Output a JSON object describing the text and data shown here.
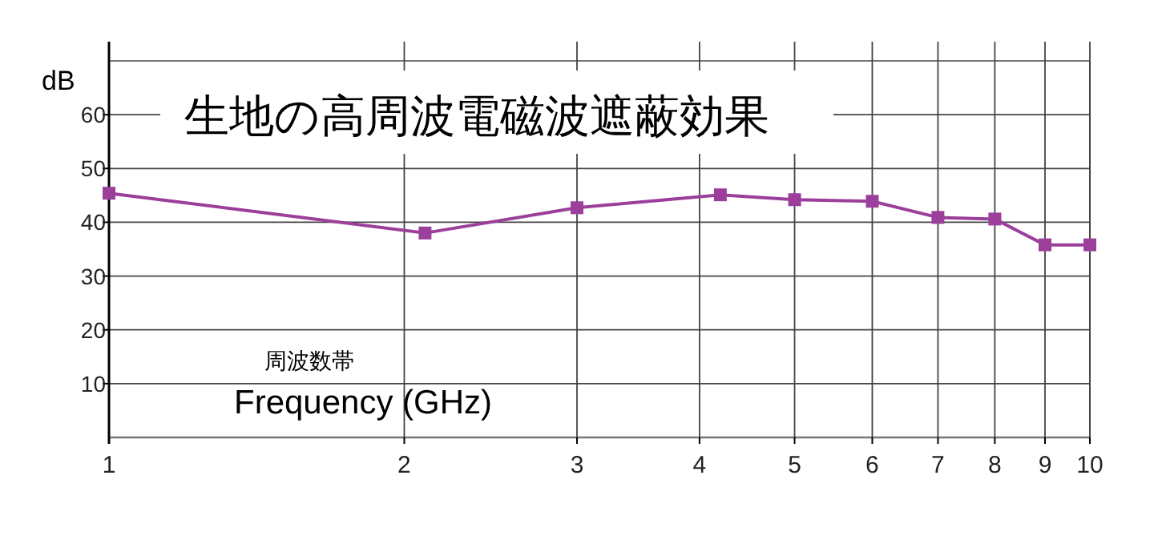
{
  "chart_data": {
    "type": "line",
    "title": "生地の高周波電磁波遮蔽効果",
    "ylabel": "dB",
    "xlabel": "Frequency (GHz)",
    "annotations": [
      "周波数帯"
    ],
    "x": [
      1,
      2.1,
      3,
      4.2,
      5,
      6,
      7,
      8,
      9,
      10
    ],
    "series": [
      {
        "color": "#9b3f9b",
        "values": [
          45.4,
          38,
          42.7,
          45.1,
          44.2,
          43.9,
          40.9,
          40.6,
          35.8,
          35.8
        ]
      }
    ],
    "xlim": [
      1,
      10
    ],
    "xticks": [
      1,
      2,
      3,
      4,
      5,
      6,
      7,
      8,
      9,
      10
    ],
    "ylim": [
      0,
      70
    ],
    "yticks": [
      10,
      20,
      30,
      40,
      50,
      60
    ],
    "log": "x",
    "grid": true,
    "marker": "square",
    "line_style": "solid"
  }
}
